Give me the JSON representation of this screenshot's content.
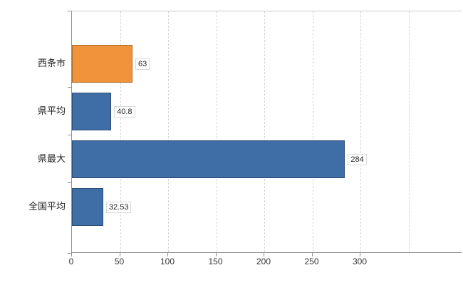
{
  "chart_data": {
    "type": "bar",
    "orientation": "horizontal",
    "title": "",
    "xlabel": "",
    "ylabel": "",
    "categories": [
      "西条市",
      "県平均",
      "県最大",
      "全国平均"
    ],
    "values": [
      63,
      40.8,
      284,
      32.53
    ],
    "value_labels": [
      "63",
      "40.8",
      "284",
      "32.53"
    ],
    "bar_colors": [
      "#F0933A",
      "#3F6DA5",
      "#3F6DA5",
      "#3F6DA5"
    ],
    "xlim": [
      0,
      340
    ],
    "x_ticks": [
      0,
      50,
      100,
      150,
      200,
      250,
      300
    ],
    "x_tick_labels": [
      "0",
      "50",
      "100",
      "150",
      "200",
      "250",
      "300"
    ],
    "gridline_values": [
      50,
      100,
      150,
      200,
      250,
      300,
      350
    ],
    "grid": true,
    "legend": false
  },
  "colors": {
    "bar_blue": "#3F6DA5",
    "bar_orange": "#F0933A",
    "axis": "#909090",
    "grid": "#d6d6d6",
    "text": "#222222",
    "background": "#ffffff"
  }
}
